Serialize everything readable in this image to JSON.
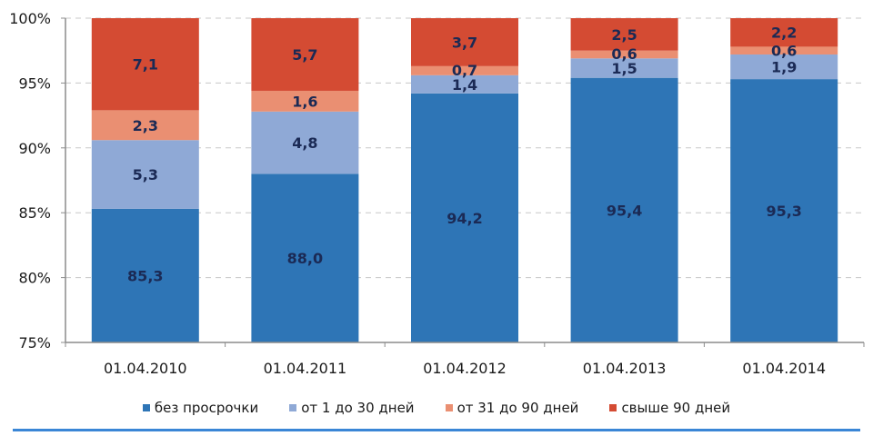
{
  "chart_data": {
    "type": "bar",
    "stacked": true,
    "title": "",
    "xlabel": "",
    "ylabel": "",
    "ylim": [
      75,
      100
    ],
    "yticks": [
      "75%",
      "80%",
      "85%",
      "90%",
      "95%",
      "100%"
    ],
    "ytick_values": [
      75,
      80,
      85,
      90,
      95,
      100
    ],
    "grid": true,
    "legend_position": "bottom",
    "categories": [
      "01.04.2010",
      "01.04.2011",
      "01.04.2012",
      "01.04.2013",
      "01.04.2014"
    ],
    "series": [
      {
        "name": "без просрочки",
        "color": "#2e75b6",
        "values": [
          85.3,
          88.0,
          94.2,
          95.4,
          95.3
        ],
        "labels": [
          "85,3",
          "88,0",
          "94,2",
          "95,4",
          "95,3"
        ]
      },
      {
        "name": "от 1 до 30 дней",
        "color": "#8fa9d6",
        "values": [
          5.3,
          4.8,
          1.4,
          1.5,
          1.9
        ],
        "labels": [
          "5,3",
          "4,8",
          "1,4",
          "1,5",
          "1,9"
        ]
      },
      {
        "name": "от 31 до 90 дней",
        "color": "#ea8f72",
        "values": [
          2.3,
          1.6,
          0.7,
          0.6,
          0.6
        ],
        "labels": [
          "2,3",
          "1,6",
          "0,7",
          "0,6",
          "0,6"
        ]
      },
      {
        "name": "свыше 90 дней",
        "color": "#d44b33",
        "values": [
          7.1,
          5.7,
          3.7,
          2.5,
          2.2
        ],
        "labels": [
          "7,1",
          "5,7",
          "3,7",
          "2,5",
          "2,2"
        ]
      }
    ]
  }
}
